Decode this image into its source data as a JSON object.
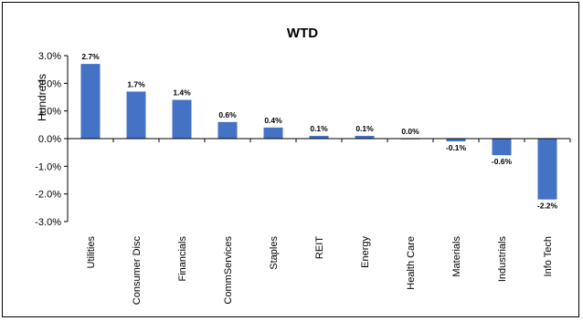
{
  "chart_data": {
    "type": "bar",
    "title": "WTD",
    "ylabel": "Hundreds",
    "xlabel": "",
    "categories": [
      "Utilities",
      "Consumer Disc",
      "Financials",
      "CommServices",
      "Staples",
      "REIT",
      "Energy",
      "Health Care",
      "Materials",
      "Industrials",
      "Info Tech"
    ],
    "values": [
      2.7,
      1.7,
      1.4,
      0.6,
      0.4,
      0.1,
      0.1,
      0.0,
      -0.1,
      -0.6,
      -2.2
    ],
    "data_labels": [
      "2.7%",
      "1.7%",
      "1.4%",
      "0.6%",
      "0.4%",
      "0.1%",
      "0.1%",
      "0.0%",
      "-0.1%",
      "-0.6%",
      "-2.2%"
    ],
    "ylim": [
      -3,
      3
    ],
    "yticks": [
      3,
      2,
      1,
      0,
      -1,
      -2,
      -3
    ],
    "ytick_labels": [
      "3.0%",
      "2.0%",
      "1.0%",
      "0.0%",
      "-1.0%",
      "-2.0%",
      "-3.0%"
    ],
    "grid": false,
    "legend": "none",
    "bar_color": "#4472C4"
  }
}
